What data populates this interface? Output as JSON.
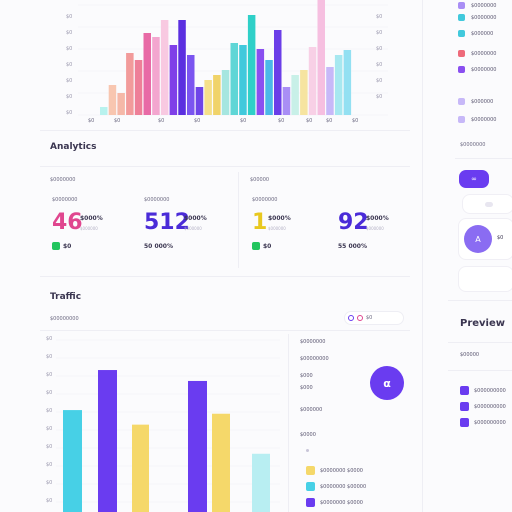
{
  "top_chart": {
    "left_ticks": [
      "$0",
      "$0",
      "$0",
      "$0",
      "$0",
      "$0",
      "$0"
    ],
    "right_ticks": [
      "$0",
      "$0",
      "$0",
      "$0",
      "$0",
      "$0"
    ],
    "x_labels": [
      "$0",
      "$0",
      "$0",
      "$0",
      "$0",
      "$0",
      "$0",
      "$0",
      "$0"
    ],
    "bars": [
      {
        "v": 8,
        "c": "#b8f2ee"
      },
      {
        "v": 30,
        "c": "#f8c6b0"
      },
      {
        "v": 22,
        "c": "#f5b8a8"
      },
      {
        "v": 62,
        "c": "#f29b9b"
      },
      {
        "v": 55,
        "c": "#ee7f98"
      },
      {
        "v": 82,
        "c": "#e86aa6"
      },
      {
        "v": 78,
        "c": "#f3a6cf"
      },
      {
        "v": 95,
        "c": "#f8c9e1"
      },
      {
        "v": 70,
        "c": "#7f3fe8"
      },
      {
        "v": 95,
        "c": "#5b2fe0"
      },
      {
        "v": 60,
        "c": "#7b55f0"
      },
      {
        "v": 28,
        "c": "#6f45e8"
      },
      {
        "v": 35,
        "c": "#f5e08a"
      },
      {
        "v": 40,
        "c": "#f0d36a"
      },
      {
        "v": 45,
        "c": "#a6e6e0"
      },
      {
        "v": 72,
        "c": "#5fd6d6"
      },
      {
        "v": 70,
        "c": "#41c9dc"
      },
      {
        "v": 100,
        "c": "#2fd0c8"
      },
      {
        "v": 66,
        "c": "#8a4ff0"
      },
      {
        "v": 55,
        "c": "#4bb8e8"
      },
      {
        "v": 85,
        "c": "#6b3ee8"
      },
      {
        "v": 28,
        "c": "#a98ef5"
      },
      {
        "v": 40,
        "c": "#c8f0e8"
      },
      {
        "v": 45,
        "c": "#f6e4a0"
      },
      {
        "v": 68,
        "c": "#f8d0e6"
      },
      {
        "v": 115,
        "c": "#f6bfe0"
      },
      {
        "v": 48,
        "c": "#c7b8f8"
      },
      {
        "v": 60,
        "c": "#a7e8f0"
      },
      {
        "v": 65,
        "c": "#93e0f2"
      }
    ]
  },
  "sidebar": {
    "items": [
      {
        "label": "$0000000",
        "color": "#a98ef5"
      },
      {
        "label": "$0000000",
        "color": "#41c9dc"
      },
      {
        "label": "$000000",
        "color": "#41c9dc"
      },
      {
        "label": "$0000000",
        "color": "#ee6a7a"
      },
      {
        "label": "$0000000",
        "color": "#8a4ff0"
      },
      {
        "label": "$000000",
        "color": "#c7b8f8"
      },
      {
        "label": "$0000000",
        "color": "#c7b8f8"
      }
    ],
    "section_label": "$0000000",
    "pill_icon": "∞",
    "avatar_text": "A",
    "avatar_label": "$0"
  },
  "analytics": {
    "title": "Analytics",
    "left_header": "$0000000",
    "right_header": "$00000",
    "stats": [
      {
        "label": "$0000000",
        "value": "46",
        "unit": "$000%",
        "sub": "$000000",
        "delta": "$0",
        "chip": "#22c55e",
        "color": "#e0468f"
      },
      {
        "label": "$0000000",
        "value": "512",
        "unit": "$000%",
        "sub": "$000000",
        "delta": "50 000%",
        "chip": "",
        "color": "#4a2bd8"
      },
      {
        "label": "$0000000",
        "value": "1",
        "unit": "$000%",
        "sub": "$000000",
        "delta": "$0",
        "chip": "#22c55e",
        "color": "#e8c81f"
      },
      {
        "label": "",
        "value": "92",
        "unit": "$000%",
        "sub": "$000000",
        "delta": "55 000%",
        "chip": "",
        "color": "#4a2bd8"
      }
    ]
  },
  "traffic": {
    "title": "Traffic",
    "subtitle": "$00000000",
    "toolbar": "$0",
    "ticks": [
      "$0",
      "$0",
      "$0",
      "$0",
      "$0",
      "$0",
      "$0",
      "$0",
      "$0",
      "$0"
    ],
    "bars": [
      {
        "v": 56,
        "c": "#47d0e6"
      },
      {
        "v": 78,
        "c": "#6a3cf0"
      },
      {
        "v": 48,
        "c": "#f5d86a"
      },
      {
        "v": 72,
        "c": "#6a3cf0"
      },
      {
        "v": 54,
        "c": "#f5d86a"
      },
      {
        "v": 32,
        "c": "#b8eef2"
      }
    ],
    "legend_title": "$0000000",
    "legend": [
      "$00000000",
      "$000",
      "$000",
      "$000000"
    ],
    "fab_icon": "α",
    "list_title": "$0000",
    "list": [
      {
        "label": "$0000000 $0000",
        "color": "#f5d86a"
      },
      {
        "label": "$0000000 $00000",
        "color": "#47d0e6"
      },
      {
        "label": "$0000000 $0000",
        "color": "#6a3cf0"
      }
    ]
  },
  "preview": {
    "title": "Preview",
    "label": "$00000",
    "items": [
      {
        "label": "$000000000",
        "color": "#6a3cf0"
      },
      {
        "label": "$000000000",
        "color": "#6a3cf0"
      },
      {
        "label": "$000000000",
        "color": "#6a3cf0"
      }
    ]
  }
}
